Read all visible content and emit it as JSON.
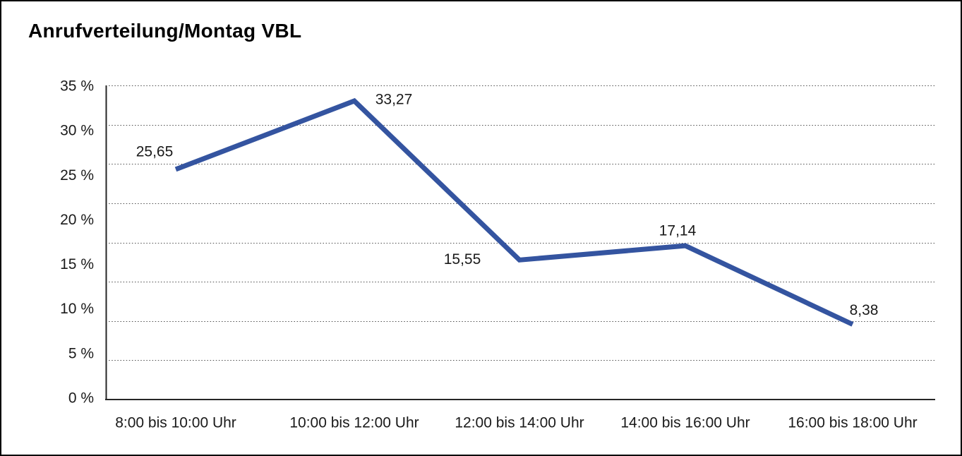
{
  "page": {
    "title": "Anrufverteilung/Montag VBL"
  },
  "chart_data": {
    "type": "line",
    "title": "Anrufverteilung/Montag VBL",
    "categories": [
      "8:00 bis 10:00 Uhr",
      "10:00 bis 12:00 Uhr",
      "12:00 bis 14:00 Uhr",
      "14:00 bis 16:00 Uhr",
      "16:00 bis 18:00 Uhr"
    ],
    "values": [
      25.65,
      33.27,
      15.55,
      17.14,
      8.38
    ],
    "point_labels": [
      "25,65",
      "33,27",
      "15,55",
      "17,14",
      "8,38"
    ],
    "y_tick_labels": [
      "35 %",
      "30 %",
      "25 %",
      "20 %",
      "15 %",
      "10 %",
      "5 %",
      "0 %"
    ],
    "ylim": [
      0,
      35
    ],
    "xlabel": "",
    "ylabel": "",
    "legend": "none",
    "grid": "horizontal-dotted",
    "colors": {
      "line": "#3454A0",
      "axis": "#262626",
      "gridline": "#4d4d4d",
      "text": "#1a1a1a"
    }
  }
}
